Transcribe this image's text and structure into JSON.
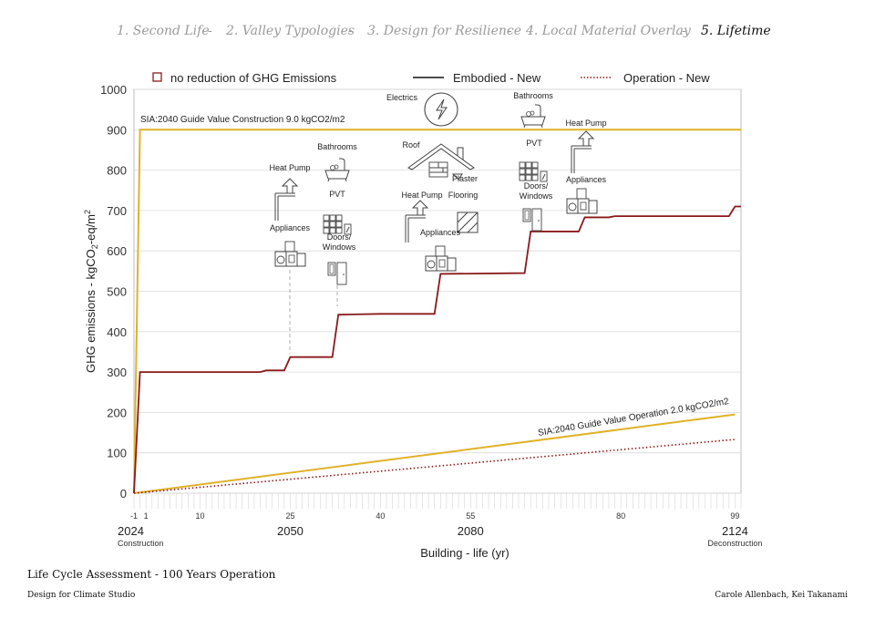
{
  "nav": {
    "items": [
      "1. Second Life",
      "2. Valley Typologies",
      "3. Design for Resilience",
      "4. Local Material Overlay",
      "5. Lifetime"
    ],
    "separator": "-",
    "active_index": 4
  },
  "footer": {
    "title": "Life Cycle Assessment - 100 Years Operation",
    "subtitle": "Design for Climate Studio",
    "authors": "Carole Allenbach, Kei Takanami"
  },
  "chart_data": {
    "type": "line",
    "ylabel": "GHG emissions - kgCO2-eq/m2",
    "xlabel": "Building - life (yr)",
    "ylim": [
      0,
      1000
    ],
    "xlim": [
      -1,
      100
    ],
    "yticks": [
      0,
      100,
      200,
      300,
      400,
      500,
      600,
      700,
      800,
      900,
      1000
    ],
    "xticks": [
      {
        "value": -1,
        "label": "-1"
      },
      {
        "value": 1,
        "label": "1"
      },
      {
        "value": 10,
        "label": "10"
      },
      {
        "value": 25,
        "label": "25"
      },
      {
        "value": 40,
        "label": "40"
      },
      {
        "value": 55,
        "label": "55"
      },
      {
        "value": 80,
        "label": "80"
      },
      {
        "value": 99,
        "label": "99"
      }
    ],
    "year_labels": [
      {
        "value": -1,
        "year": "2024",
        "note": "Construction"
      },
      {
        "value": 25,
        "year": "2050",
        "note": ""
      },
      {
        "value": 55,
        "year": "2080",
        "note": ""
      },
      {
        "value": 99,
        "year": "2124",
        "note": "Deconstruction"
      }
    ],
    "grid": true,
    "legend": {
      "placement": "top",
      "entries": [
        {
          "label": "no reduction of GHG Emissions",
          "style": "square"
        },
        {
          "label": "Embodied - New",
          "style": "solid"
        },
        {
          "label": "Operation - New",
          "style": "dotted"
        }
      ]
    },
    "colors": {
      "embodied": "#8b1a1a",
      "guide": "#e0b22a",
      "axis": "#999999",
      "grid": "#dcdcdc"
    },
    "series": [
      {
        "name": "Embodied - New",
        "style": "step",
        "x": [
          -1,
          0,
          20,
          21,
          24,
          25,
          32,
          33,
          40,
          49,
          50,
          64,
          65,
          73,
          74,
          78,
          79,
          98,
          99,
          100
        ],
        "y": [
          0,
          300,
          300,
          304,
          304,
          337,
          337,
          442,
          444,
          444,
          543,
          545,
          648,
          648,
          683,
          683,
          686,
          686,
          710,
          710
        ]
      },
      {
        "name": "Operation - New",
        "style": "dotted",
        "x": [
          -1,
          99
        ],
        "y": [
          0,
          133
        ]
      }
    ],
    "guides": [
      {
        "label": "SIA:2040 Guide Value Construction 9.0 kgCO2/m2",
        "x": [
          -1,
          0,
          100
        ],
        "y": [
          0,
          900,
          900
        ]
      },
      {
        "label": "SIA:2040 Guide Value Operation 2.0 kgCO2/m2",
        "x": [
          -1,
          99
        ],
        "y": [
          0,
          195
        ]
      }
    ],
    "annotations": [
      {
        "text": "Electrics",
        "icon": "electrics-icon",
        "x": 45,
        "y": 955
      },
      {
        "text": "Bathrooms",
        "icon": "bathtub-icon",
        "x": 66,
        "y": 955
      },
      {
        "text": "Heat Pump",
        "icon": "heat-pump-icon",
        "x": 74,
        "y": 895
      },
      {
        "text": "Bathrooms",
        "icon": "bathtub-icon",
        "x": 34,
        "y": 855
      },
      {
        "text": "Roof",
        "icon": "roof-icon",
        "x": 46,
        "y": 860
      },
      {
        "text": "Plaster",
        "icon": "plaster-icon",
        "x": 54,
        "y": 785
      },
      {
        "text": "PVT",
        "icon": "pvt-icon",
        "x": 66,
        "y": 835
      },
      {
        "text": "Heat Pump",
        "icon": "heat-pump-icon",
        "x": 25,
        "y": 795
      },
      {
        "text": "Appliances",
        "icon": "appliances-icon",
        "x": 74,
        "y": 775
      },
      {
        "text": "PVT",
        "icon": "pvt-icon",
        "x": 34,
        "y": 730
      },
      {
        "text": "Heat Pump",
        "icon": "heat-pump-icon",
        "x": 47,
        "y": 730
      },
      {
        "text": "Flooring",
        "icon": "flooring-icon",
        "x": 55,
        "y": 730
      },
      {
        "text": "Doors/ Windows",
        "icon": "doors-windows-icon",
        "x": 66,
        "y": 740
      },
      {
        "text": "Appliances",
        "icon": "appliances-icon",
        "x": 25,
        "y": 655
      },
      {
        "text": "Doors/ Windows",
        "icon": "doors-windows-icon",
        "x": 34,
        "y": 635
      },
      {
        "text": "Appliances",
        "icon": "appliances-icon",
        "x": 50,
        "y": 640
      }
    ]
  }
}
